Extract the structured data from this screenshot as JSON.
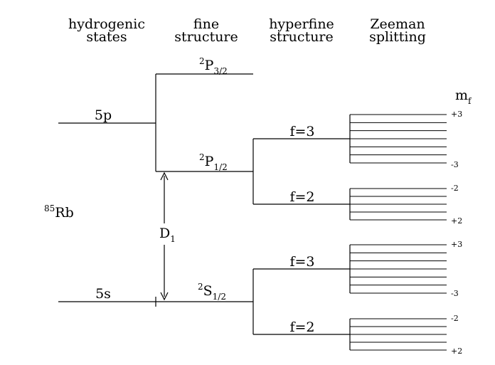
{
  "headers": {
    "col1": [
      "hydrogenic",
      "states"
    ],
    "col2": [
      "fine",
      "structure"
    ],
    "col3": [
      "hyperfine",
      "structure"
    ],
    "col4": [
      "Zeeman",
      "splitting"
    ]
  },
  "atom": {
    "mass": "85",
    "symbol": "Rb"
  },
  "levels": {
    "h5p": "5p",
    "h5s": "5s",
    "p32": {
      "sup": "2",
      "base": "P",
      "sub": "3/2"
    },
    "p12": {
      "sup": "2",
      "base": "P",
      "sub": "1/2"
    },
    "s12": {
      "sup": "2",
      "base": "S",
      "sub": "1/2"
    }
  },
  "hyperfine": {
    "p_f3": "f=3",
    "p_f2": "f=2",
    "s_f3": "f=3",
    "s_f2": "f=2"
  },
  "transition": {
    "base": "D",
    "sub": "1"
  },
  "mf": {
    "header_base": "m",
    "header_sub": "f",
    "p_f3_top": "+3",
    "p_f3_bottom": "-3",
    "p_f2_top": "-2",
    "p_f2_bottom": "+2",
    "s_f3_top": "+3",
    "s_f3_bottom": "-3",
    "s_f2_top": "-2",
    "s_f2_bottom": "+2"
  },
  "zeeman_counts": {
    "p_f3": 7,
    "p_f2": 5,
    "s_f3": 7,
    "s_f2": 5
  }
}
